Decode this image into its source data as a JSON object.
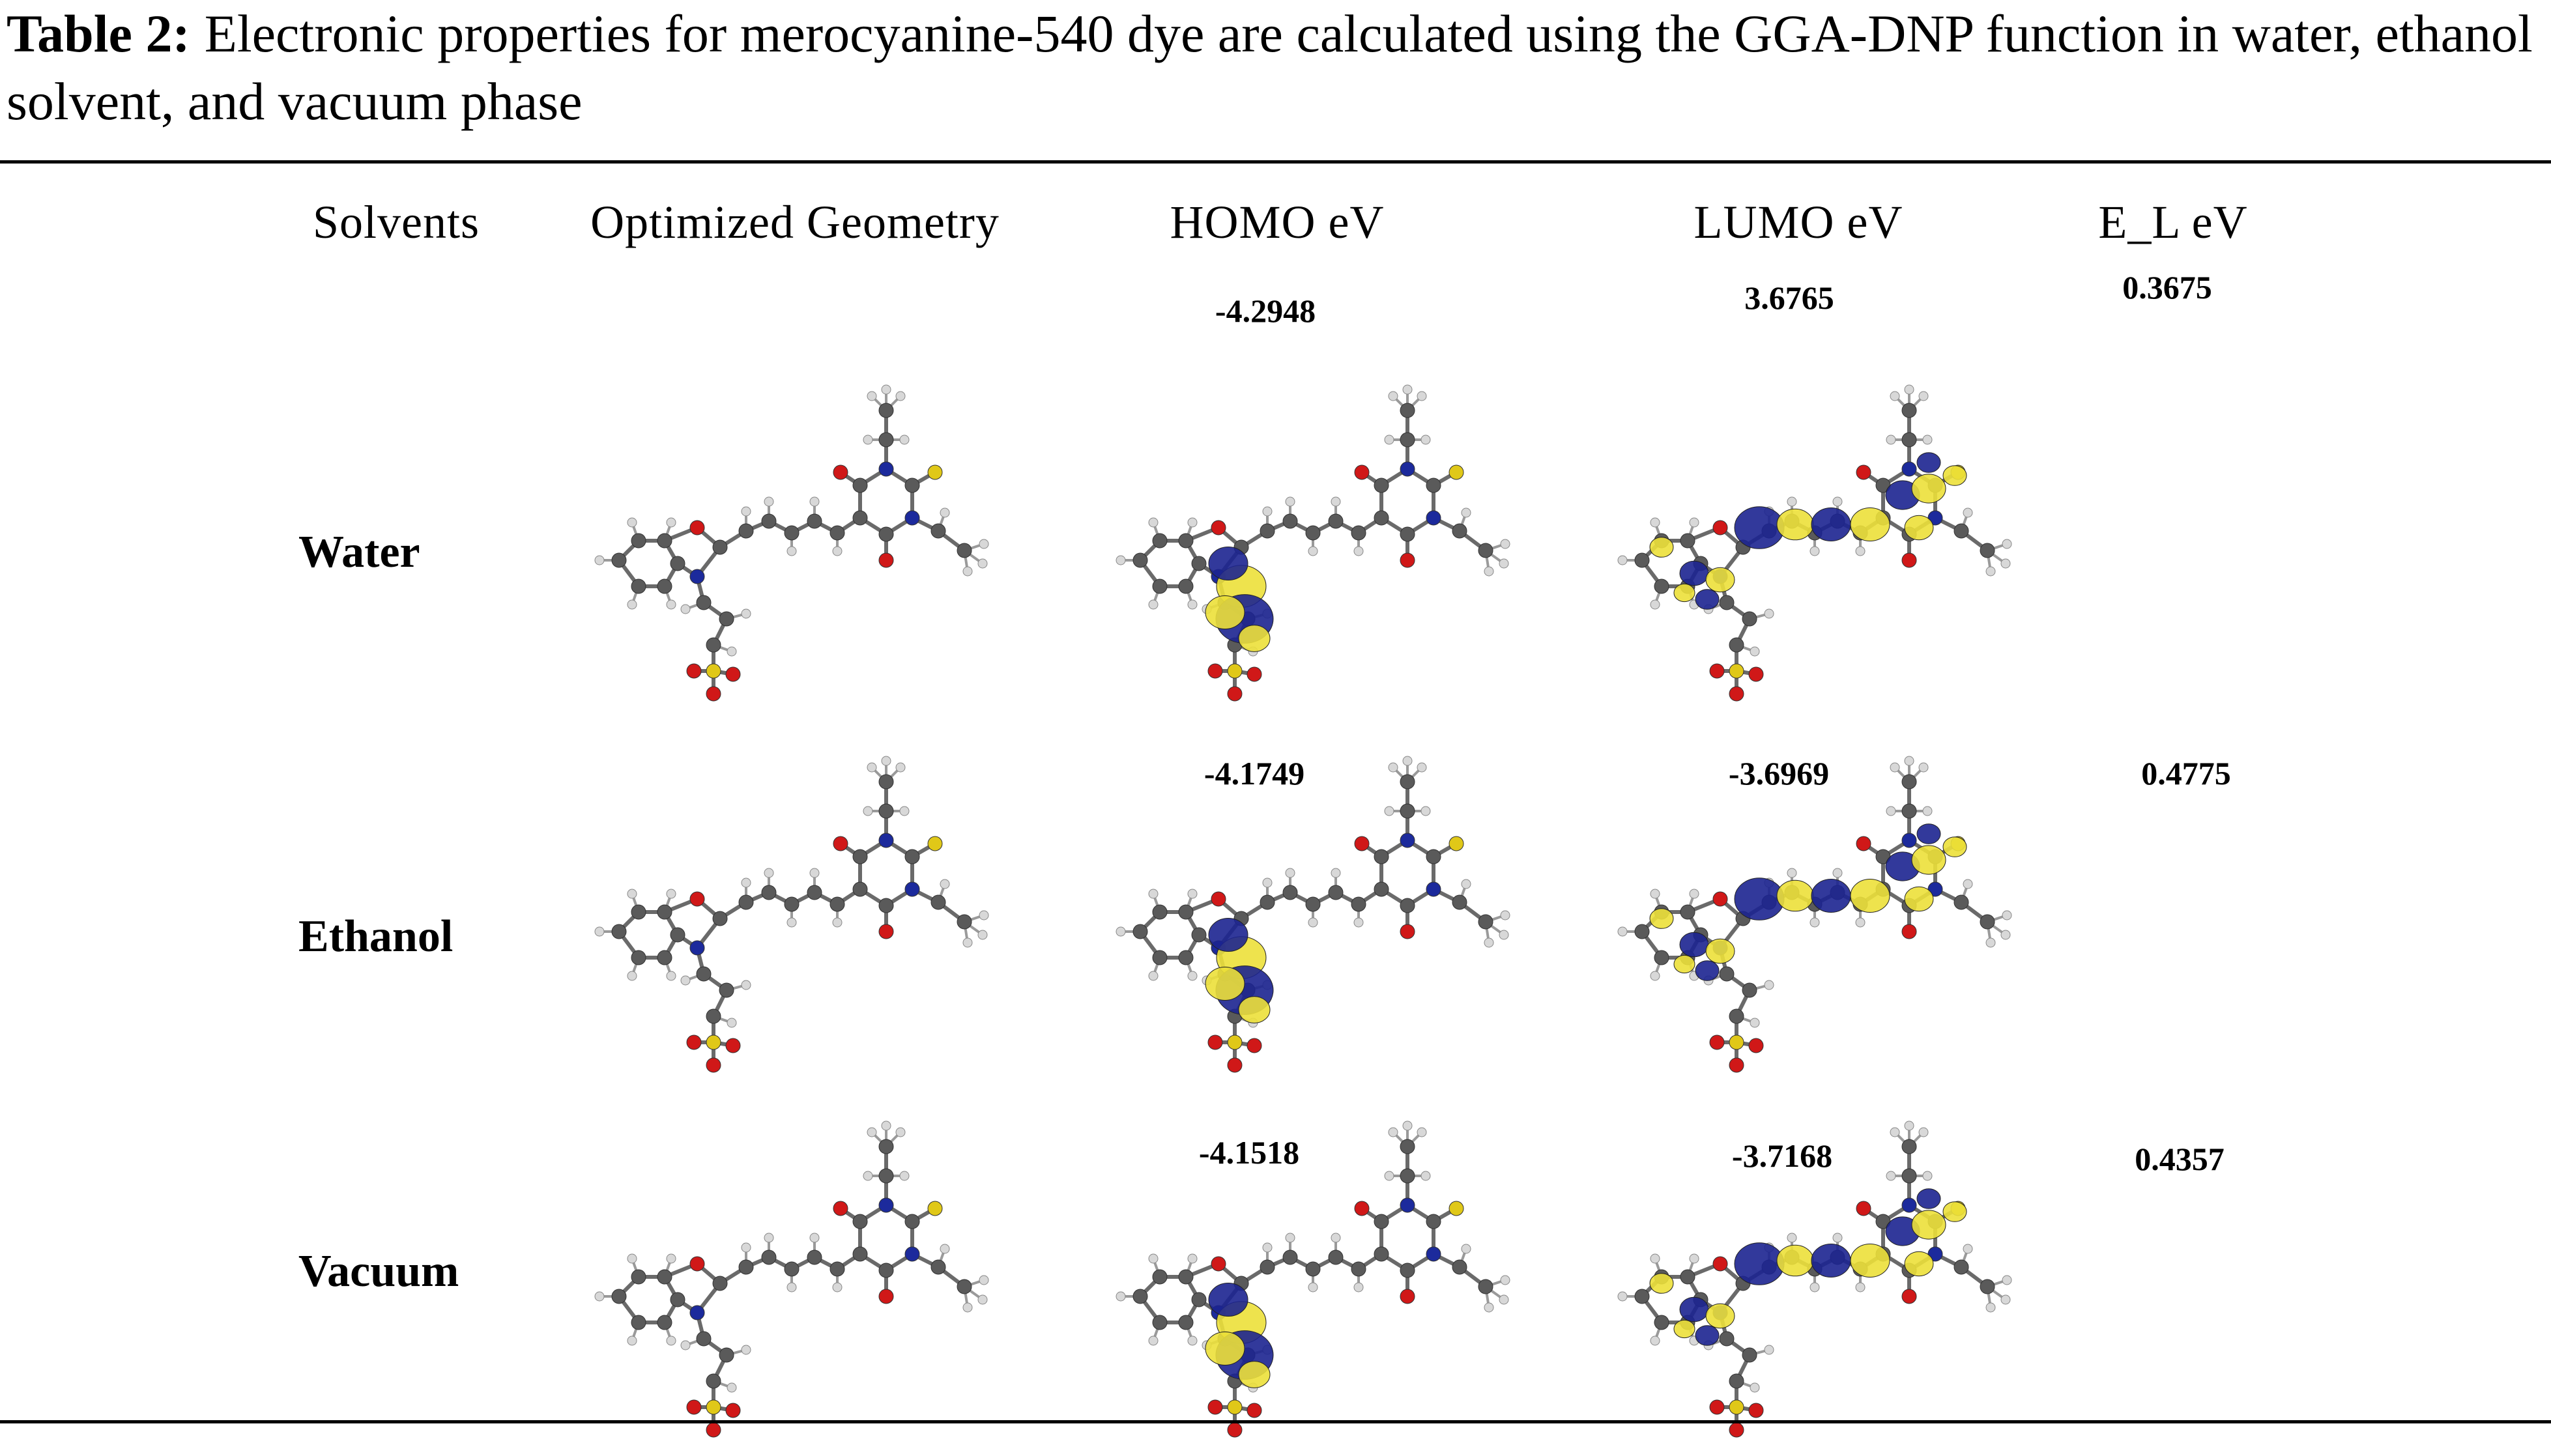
{
  "caption": {
    "label": "Table 2:",
    "text": "Electronic properties for merocyanine-540 dye are calculated using the GGA-DNP function in water, ethanol solvent, and vacuum phase"
  },
  "table": {
    "headers": [
      "Solvents",
      "Optimized Geometry",
      "HOMO eV",
      "LUMO eV",
      "E_L eV"
    ],
    "rows": [
      {
        "solvent": "Water",
        "homo": "-4.2948",
        "lumo": "3.6765",
        "el": "0.3675"
      },
      {
        "solvent": "Ethanol",
        "homo": "-4.1749",
        "lumo": "-3.6969",
        "el": "0.4775"
      },
      {
        "solvent": "Vacuum",
        "homo": "-4.1518",
        "lumo": "-3.7168",
        "el": "0.4357"
      }
    ]
  },
  "colors": {
    "carbon": "#5a5a5a",
    "hydrogen": "#d8d8d8",
    "oxygen": "#d01818",
    "nitrogen": "#1c2a9c",
    "sulfur": "#e0c818",
    "orbital_positive": "#1c2390",
    "orbital_negative": "#ece03a"
  }
}
